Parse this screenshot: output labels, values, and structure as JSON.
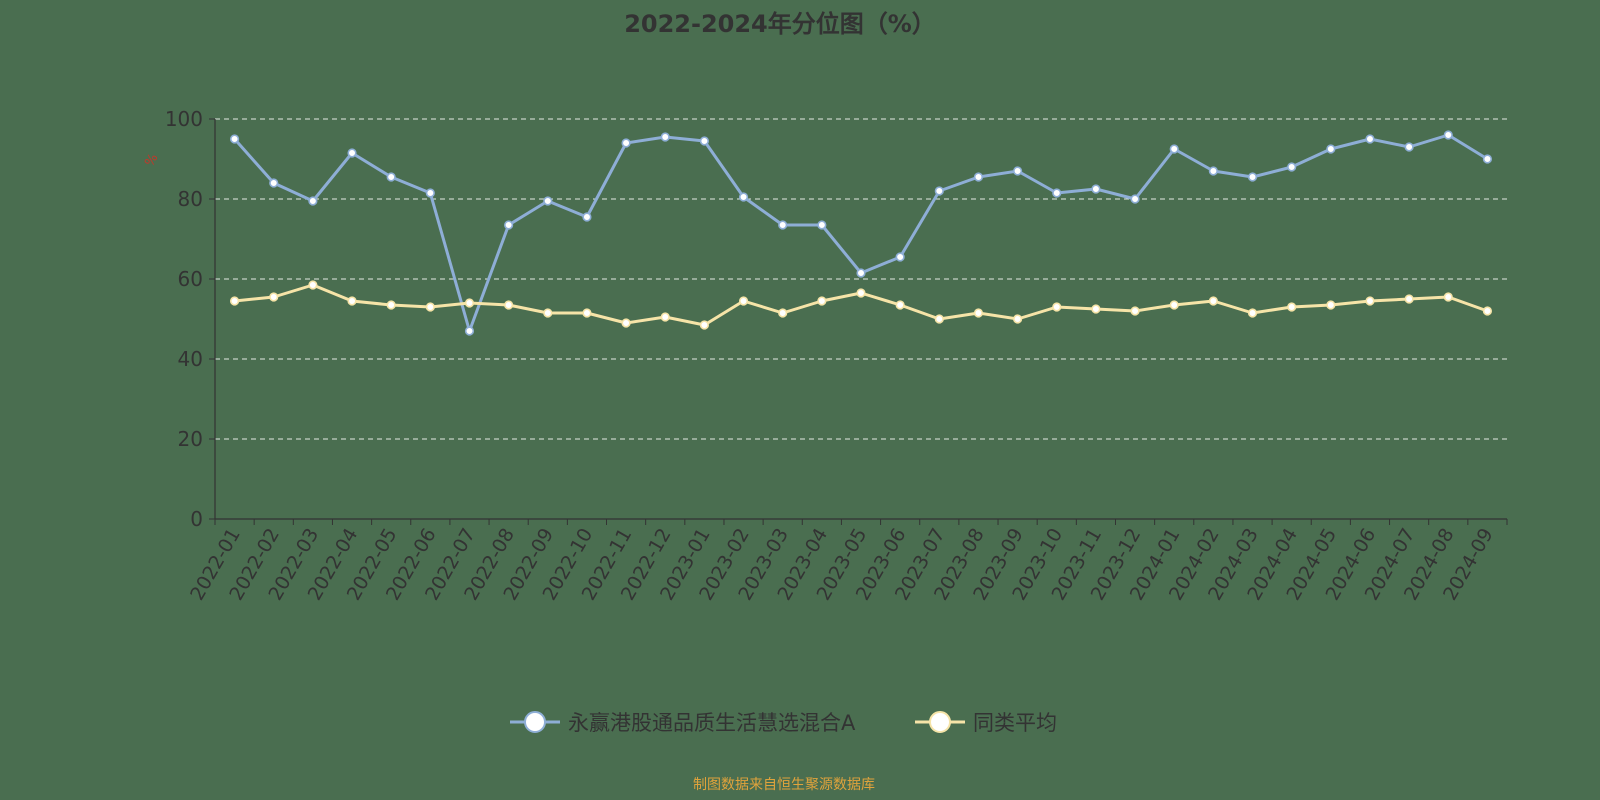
{
  "chart_data": {
    "type": "line",
    "title": "2022-2024年分位图（%）",
    "ylabel": "%",
    "xlabel": "",
    "ylim": [
      0,
      100
    ],
    "yticks": [
      0,
      20,
      40,
      60,
      80,
      100
    ],
    "grid": true,
    "legend_position": "bottom-center",
    "categories": [
      "2022-01",
      "2022-02",
      "2022-03",
      "2022-04",
      "2022-05",
      "2022-06",
      "2022-07",
      "2022-08",
      "2022-09",
      "2022-10",
      "2022-11",
      "2022-12",
      "2023-01",
      "2023-02",
      "2023-03",
      "2023-04",
      "2023-05",
      "2023-06",
      "2023-07",
      "2023-08",
      "2023-09",
      "2023-10",
      "2023-11",
      "2023-12",
      "2024-01",
      "2024-02",
      "2024-03",
      "2024-04",
      "2024-05",
      "2024-06",
      "2024-07",
      "2024-08",
      "2024-09"
    ],
    "series": [
      {
        "name": "永赢港股通品质生活慧选混合A",
        "color": "#8eaed6",
        "values": [
          95,
          84,
          79.5,
          91.5,
          85.5,
          81.5,
          47,
          73.5,
          79.5,
          75.5,
          94,
          95.5,
          94.5,
          80.5,
          73.5,
          73.5,
          61.5,
          65.5,
          82,
          85.5,
          87,
          81.5,
          82.5,
          80,
          92.5,
          87,
          85.5,
          88,
          92.5,
          95,
          93,
          96,
          90
        ]
      },
      {
        "name": "同类平均",
        "color": "#f6e4a8",
        "values": [
          54.5,
          55.5,
          58.5,
          54.5,
          53.5,
          53,
          54,
          53.5,
          51.5,
          51.5,
          49,
          50.5,
          48.5,
          54.5,
          51.5,
          54.5,
          56.5,
          53.5,
          50,
          51.5,
          50,
          53,
          52.5,
          52,
          53.5,
          54.5,
          51.5,
          53,
          53.5,
          54.5,
          55,
          55.5,
          52
        ]
      }
    ]
  },
  "footer": {
    "source": "制图数据来自恒生聚源数据库",
    "source_color": "#e0a33c"
  }
}
